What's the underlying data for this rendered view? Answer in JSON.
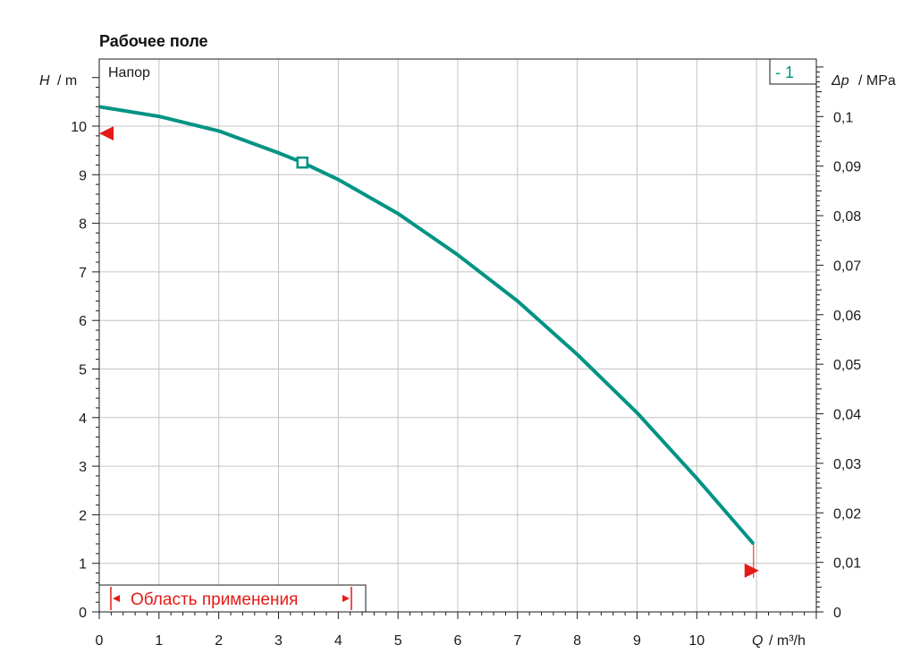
{
  "chart_data": {
    "type": "line",
    "title": "Рабочее поле",
    "plot_label": "Напор",
    "x_axis": {
      "symbol": "Q",
      "unit": "/ m³/h",
      "range": [
        0,
        12
      ],
      "ticks": [
        "0",
        "1",
        "2",
        "3",
        "4",
        "5",
        "6",
        "7",
        "8",
        "9",
        "10"
      ]
    },
    "y_axis_left": {
      "symbol": "H",
      "unit": "/ m",
      "range": [
        0,
        11
      ],
      "ticks": [
        "0",
        "1",
        "2",
        "3",
        "4",
        "5",
        "6",
        "7",
        "8",
        "9",
        "10"
      ]
    },
    "y_axis_right": {
      "symbol": "Δp",
      "unit": "/ MPa",
      "ticks": [
        "0",
        "0,01",
        "0,02",
        "0,03",
        "0,04",
        "0,05",
        "0,06",
        "0,07",
        "0,08",
        "0,09",
        "0,1"
      ]
    },
    "series": [
      {
        "name": "- 1",
        "color": "#009384",
        "x": [
          0,
          1,
          2,
          3,
          3.4,
          4,
          5,
          6,
          7,
          8,
          9,
          10,
          10.95
        ],
        "y": [
          10.4,
          10.2,
          9.9,
          9.45,
          9.25,
          8.9,
          8.2,
          7.35,
          6.4,
          5.3,
          4.1,
          2.75,
          1.4
        ]
      }
    ],
    "duty_point": {
      "x": 3.4,
      "y": 9.25
    },
    "markers": {
      "left_y": 9.85,
      "right_x": 10.8,
      "right_y": 0.85
    },
    "application_area": {
      "label": "Область применения",
      "x_min": 0.2,
      "x_max": 4.25
    },
    "grid": true,
    "legend": "top-right"
  },
  "colors": {
    "curve": "#009384",
    "marker": "#e41b17",
    "grid": "#bdbdbd",
    "axis": "#1a1a1a"
  }
}
